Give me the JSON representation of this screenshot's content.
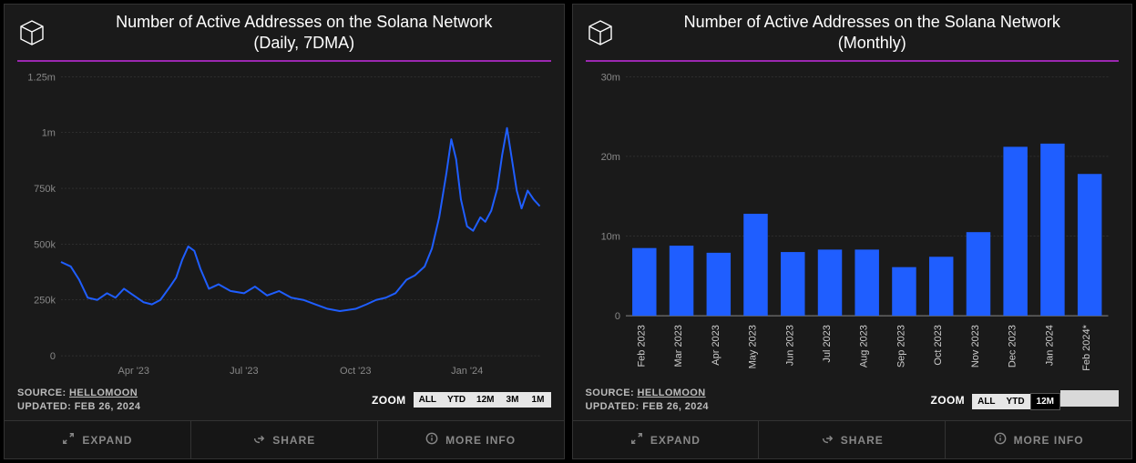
{
  "panels": [
    {
      "title_line1": "Number of Active Addresses on the Solana Network",
      "title_line2": "(Daily, 7DMA)",
      "accent_color": "#9b27b0",
      "source_label": "SOURCE:",
      "source_name": "HELLOMOON",
      "updated_label": "UPDATED:",
      "updated_value": "FEB 26, 2024",
      "zoom_label": "ZOOM",
      "zoom_buttons": [
        "ALL",
        "YTD",
        "12M",
        "3M",
        "1M"
      ],
      "zoom_active_index": -1,
      "actions": [
        {
          "icon": "expand",
          "label": "EXPAND"
        },
        {
          "icon": "share",
          "label": "SHARE"
        },
        {
          "icon": "info",
          "label": "MORE INFO"
        }
      ],
      "chart": {
        "type": "line",
        "line_color": "#1f5eff",
        "line_width": 2,
        "background_color": "#1a1a1a",
        "grid_color": "#444",
        "axis_font_size": 11,
        "ylim": [
          0,
          1250000
        ],
        "yticks": [
          {
            "v": 0,
            "label": "0"
          },
          {
            "v": 250000,
            "label": "250k"
          },
          {
            "v": 500000,
            "label": "500k"
          },
          {
            "v": 750000,
            "label": "750k"
          },
          {
            "v": 1000000,
            "label": "1m"
          },
          {
            "v": 1250000,
            "label": "1.25m"
          }
        ],
        "x_range_days": 395,
        "xticks": [
          {
            "t": 60,
            "label": "Apr '23"
          },
          {
            "t": 151,
            "label": "Jul '23"
          },
          {
            "t": 243,
            "label": "Oct '23"
          },
          {
            "t": 335,
            "label": "Jan '24"
          }
        ],
        "series": [
          {
            "t": 0,
            "v": 420000
          },
          {
            "t": 8,
            "v": 400000
          },
          {
            "t": 15,
            "v": 340000
          },
          {
            "t": 22,
            "v": 260000
          },
          {
            "t": 30,
            "v": 250000
          },
          {
            "t": 38,
            "v": 280000
          },
          {
            "t": 45,
            "v": 260000
          },
          {
            "t": 52,
            "v": 300000
          },
          {
            "t": 60,
            "v": 270000
          },
          {
            "t": 68,
            "v": 240000
          },
          {
            "t": 75,
            "v": 230000
          },
          {
            "t": 82,
            "v": 250000
          },
          {
            "t": 90,
            "v": 310000
          },
          {
            "t": 95,
            "v": 350000
          },
          {
            "t": 100,
            "v": 430000
          },
          {
            "t": 105,
            "v": 490000
          },
          {
            "t": 110,
            "v": 470000
          },
          {
            "t": 115,
            "v": 390000
          },
          {
            "t": 122,
            "v": 300000
          },
          {
            "t": 130,
            "v": 320000
          },
          {
            "t": 140,
            "v": 290000
          },
          {
            "t": 151,
            "v": 280000
          },
          {
            "t": 160,
            "v": 310000
          },
          {
            "t": 170,
            "v": 270000
          },
          {
            "t": 180,
            "v": 290000
          },
          {
            "t": 190,
            "v": 260000
          },
          {
            "t": 200,
            "v": 250000
          },
          {
            "t": 210,
            "v": 230000
          },
          {
            "t": 220,
            "v": 210000
          },
          {
            "t": 230,
            "v": 200000
          },
          {
            "t": 243,
            "v": 210000
          },
          {
            "t": 252,
            "v": 230000
          },
          {
            "t": 260,
            "v": 250000
          },
          {
            "t": 268,
            "v": 260000
          },
          {
            "t": 276,
            "v": 280000
          },
          {
            "t": 285,
            "v": 340000
          },
          {
            "t": 292,
            "v": 360000
          },
          {
            "t": 300,
            "v": 400000
          },
          {
            "t": 306,
            "v": 480000
          },
          {
            "t": 312,
            "v": 620000
          },
          {
            "t": 318,
            "v": 820000
          },
          {
            "t": 322,
            "v": 970000
          },
          {
            "t": 326,
            "v": 880000
          },
          {
            "t": 330,
            "v": 700000
          },
          {
            "t": 335,
            "v": 580000
          },
          {
            "t": 340,
            "v": 560000
          },
          {
            "t": 346,
            "v": 620000
          },
          {
            "t": 350,
            "v": 600000
          },
          {
            "t": 355,
            "v": 650000
          },
          {
            "t": 360,
            "v": 750000
          },
          {
            "t": 364,
            "v": 900000
          },
          {
            "t": 368,
            "v": 1020000
          },
          {
            "t": 372,
            "v": 880000
          },
          {
            "t": 376,
            "v": 740000
          },
          {
            "t": 380,
            "v": 660000
          },
          {
            "t": 385,
            "v": 740000
          },
          {
            "t": 390,
            "v": 700000
          },
          {
            "t": 395,
            "v": 670000
          }
        ]
      }
    },
    {
      "title_line1": "Number of Active Addresses on the Solana Network",
      "title_line2": "(Monthly)",
      "accent_color": "#9b27b0",
      "source_label": "SOURCE:",
      "source_name": "HELLOMOON",
      "updated_label": "UPDATED:",
      "updated_value": "FEB 26, 2024",
      "zoom_label": "ZOOM",
      "zoom_buttons": [
        "ALL",
        "YTD",
        "12M",
        "",
        ""
      ],
      "zoom_active_index": 2,
      "actions": [
        {
          "icon": "expand",
          "label": "EXPAND"
        },
        {
          "icon": "share",
          "label": "SHARE"
        },
        {
          "icon": "info",
          "label": "MORE INFO"
        }
      ],
      "chart": {
        "type": "bar",
        "bar_color": "#1f5eff",
        "background_color": "#1a1a1a",
        "grid_color": "#444",
        "axis_font_size": 11,
        "bar_width_ratio": 0.65,
        "ylim": [
          0,
          30000000
        ],
        "yticks": [
          {
            "v": 0,
            "label": "0"
          },
          {
            "v": 10000000,
            "label": "10m"
          },
          {
            "v": 20000000,
            "label": "20m"
          },
          {
            "v": 30000000,
            "label": "30m"
          }
        ],
        "categories": [
          "Feb 2023",
          "Mar 2023",
          "Apr 2023",
          "May 2023",
          "Jun 2023",
          "Jul 2023",
          "Aug 2023",
          "Sep 2023",
          "Oct 2023",
          "Nov 2023",
          "Dec 2023",
          "Jan 2024",
          "Feb 2024*"
        ],
        "values": [
          8500000,
          8800000,
          7900000,
          12800000,
          8000000,
          8300000,
          8300000,
          6100000,
          7400000,
          10500000,
          21200000,
          21600000,
          17800000
        ]
      }
    }
  ]
}
